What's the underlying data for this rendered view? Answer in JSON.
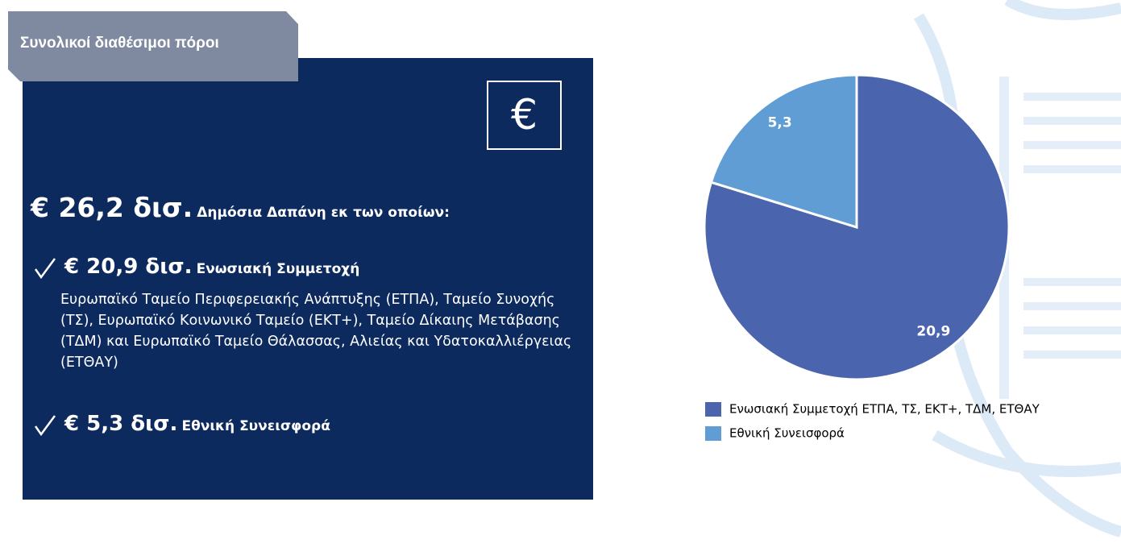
{
  "panel": {
    "title": "Συνολικοί διαθέσιμοι πόροι",
    "icon": "€",
    "total": {
      "amount": "€ 26,2 δισ.",
      "label": "Δημόσια Δαπάνη εκ των οποίων:"
    },
    "items": [
      {
        "amount": "€ 20,9 δισ.",
        "label": "Ενωσιακή Συμμετοχή",
        "description": "Ευρωπαϊκό Ταμείο Περιφερειακής Ανάπτυξης (ΕΤΠΑ), Ταμείο Συνοχής (ΤΣ), Ευρωπαϊκό Κοινωνικό Ταμείο (ΕΚΤ+), Ταμείο Δίκαιης Μετάβασης (ΤΔΜ) και Ευρωπαϊκό Ταμείο Θάλασσας, Αλιείας και Υδατοκαλλιέργειας (ΕΤΘΑΥ)"
      },
      {
        "amount": "€ 5,3 δισ.",
        "label": "Εθνική Συνεισφορά"
      }
    ]
  },
  "chart_data": {
    "type": "pie",
    "categories": [
      "Ενωσιακή Συμμετοχή ΕΤΠΑ, ΤΣ, ΕΚΤ+, ΤΔΜ, ΕΤΘΑΥ",
      "Εθνική Συνεισφορά"
    ],
    "values": [
      20.9,
      5.3
    ],
    "value_labels": [
      "20,9",
      "5,3"
    ],
    "colors": [
      "#4a64ad",
      "#5f9dd4"
    ]
  }
}
